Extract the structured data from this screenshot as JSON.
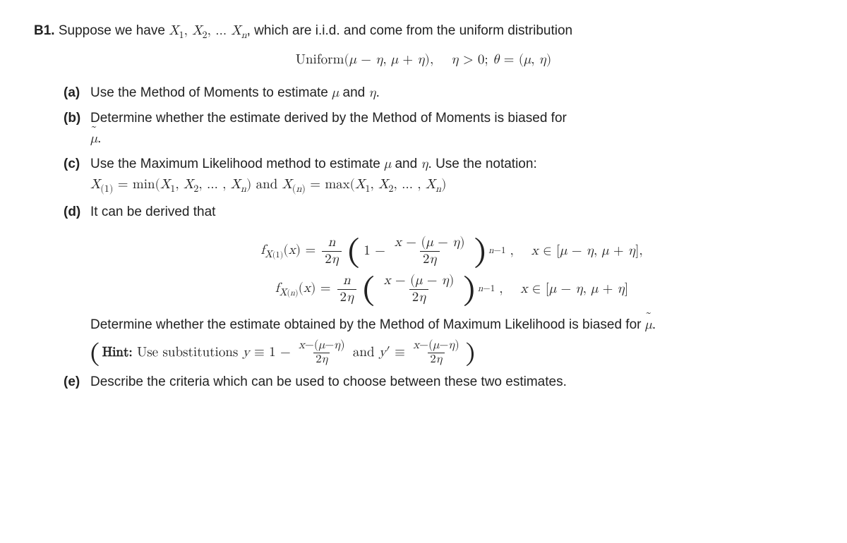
{
  "problem": {
    "label": "B1.",
    "intro_prefix": "Suppose we have ",
    "intro_vars": "X₁, X₂, … Xₙ",
    "intro_suffix": ", which are i.i.d. and come from the uniform distribution",
    "dist_line": "Uniform(μ − η, μ + η),    η > 0; θ = (μ, η)"
  },
  "parts": {
    "a": {
      "label": "(a)",
      "text_pre": "Use the Method of Moments to estimate ",
      "mu": "μ",
      "and": " and ",
      "eta": "η",
      "period": "."
    },
    "b": {
      "label": "(b)",
      "text": "Determine whether the estimate derived by the Method of Moments is biased for",
      "mu_tilde": "μ",
      "period": "."
    },
    "c": {
      "label": "(c)",
      "text_pre": "Use the Maximum Likelihood method to estimate ",
      "mu": "μ",
      "and": " and ",
      "eta": "η",
      "notation_text": ".  Use the notation:",
      "line2": "X(1) = min(X₁, X₂, … , Xₙ) and X(n) = max(X₁, X₂, … , Xₙ)"
    },
    "d": {
      "label": "(d)",
      "intro": "It can be derived that",
      "f1_lhs": "f",
      "sub1": "X(1)",
      "arg": "(x) =",
      "n": "n",
      "two_eta": "2η",
      "one_minus": "1 −",
      "inner_num": "x − (μ − η)",
      "exp": "n−1",
      "comma": ",",
      "dom1": "x ∈ [μ − η, μ + η],",
      "f2_lhs": "f",
      "sub2": "X(n)",
      "dom2": "x ∈ [μ − η, μ + η]",
      "conclusion_pre": "Determine whether the estimate obtained by the Method of Maximum Likelihood is biased for ",
      "mu_tilde": "μ",
      "period": ".",
      "hint_label": "Hint:",
      "hint_text": " Use substitutions ",
      "y_def": "y ≡ 1 −",
      "hint_num": "x−(μ−η)",
      "hint_den": "2η",
      "and": " and ",
      "yprime_def": "y′ ≡"
    },
    "e": {
      "label": "(e)",
      "text": "Describe the criteria which can be used to choose between these two estimates."
    }
  }
}
